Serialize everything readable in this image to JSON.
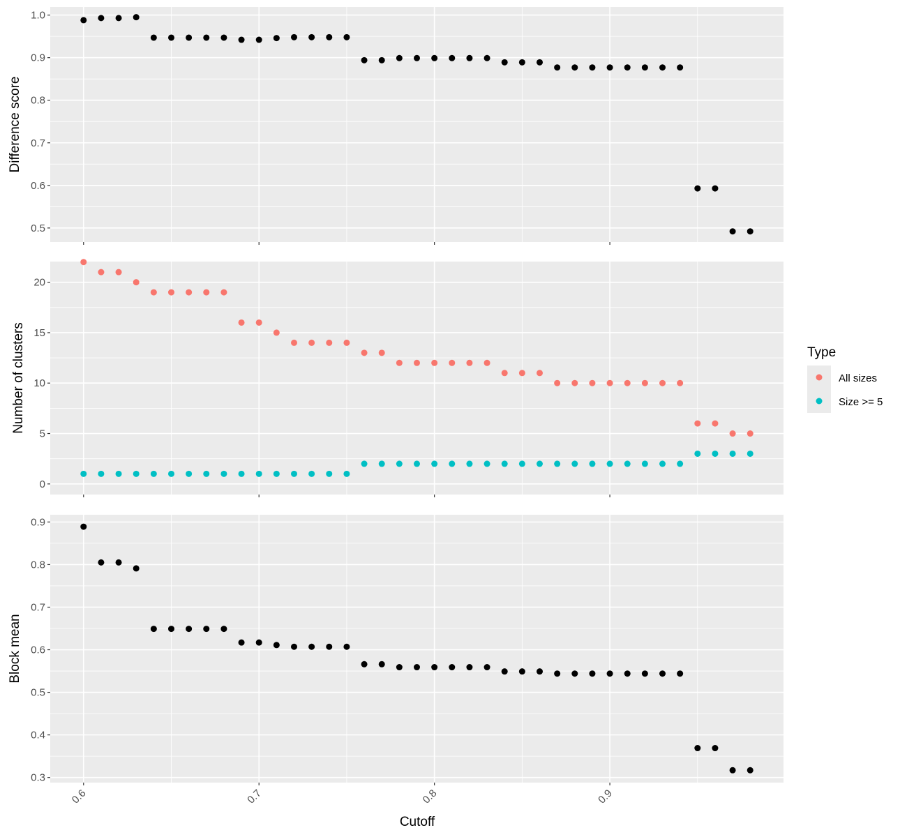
{
  "chart_data": {
    "type": "scatter",
    "x_axis": {
      "label": "Cutoff",
      "range": [
        0.581,
        0.999
      ],
      "ticks": [
        0.6,
        0.7,
        0.8,
        0.9
      ],
      "tick_labels": [
        "0.6",
        "0.7",
        "0.8",
        "0.9"
      ],
      "tick_label_rotation": "45deg"
    },
    "x": [
      0.6,
      0.61,
      0.62,
      0.63,
      0.64,
      0.65,
      0.66,
      0.67,
      0.68,
      0.69,
      0.7,
      0.71,
      0.72,
      0.73,
      0.74,
      0.75,
      0.76,
      0.77,
      0.78,
      0.79,
      0.8,
      0.81,
      0.82,
      0.83,
      0.84,
      0.85,
      0.86,
      0.87,
      0.88,
      0.89,
      0.9,
      0.91,
      0.92,
      0.93,
      0.94,
      0.95,
      0.96,
      0.97,
      0.98
    ],
    "grid": true,
    "panels": [
      {
        "ylabel": "Difference score",
        "ylim": [
          0.467,
          1.019
        ],
        "yticks": [
          0.5,
          0.6,
          0.7,
          0.8,
          0.9,
          1.0
        ],
        "ytick_labels": [
          "0.5",
          "0.6",
          "0.7",
          "0.8",
          "0.9",
          "1.0"
        ],
        "series": [
          {
            "color": "#000000",
            "values": [
              0.988,
              0.993,
              0.993,
              0.995,
              0.947,
              0.947,
              0.947,
              0.947,
              0.947,
              0.942,
              0.942,
              0.946,
              0.948,
              0.948,
              0.948,
              0.948,
              0.894,
              0.894,
              0.899,
              0.899,
              0.899,
              0.899,
              0.899,
              0.899,
              0.889,
              0.889,
              0.889,
              0.877,
              0.877,
              0.877,
              0.877,
              0.877,
              0.877,
              0.877,
              0.877,
              0.593,
              0.593,
              0.492,
              0.492
            ]
          }
        ]
      },
      {
        "ylabel": "Number of clusters",
        "ylim": [
          -1.05,
          22.05
        ],
        "yticks": [
          0,
          5,
          10,
          15,
          20
        ],
        "ytick_labels": [
          "0",
          "5",
          "10",
          "15",
          "20"
        ],
        "series": [
          {
            "name": "All sizes",
            "color": "#F8766D",
            "values": [
              22,
              21,
              21,
              20,
              19,
              19,
              19,
              19,
              19,
              16,
              16,
              15,
              14,
              14,
              14,
              14,
              13,
              13,
              12,
              12,
              12,
              12,
              12,
              12,
              11,
              11,
              11,
              10,
              10,
              10,
              10,
              10,
              10,
              10,
              10,
              6,
              6,
              5,
              5
            ]
          },
          {
            "name": "Size >= 5",
            "color": "#00BFC4",
            "values": [
              1,
              1,
              1,
              1,
              1,
              1,
              1,
              1,
              1,
              1,
              1,
              1,
              1,
              1,
              1,
              1,
              2,
              2,
              2,
              2,
              2,
              2,
              2,
              2,
              2,
              2,
              2,
              2,
              2,
              2,
              2,
              2,
              2,
              2,
              2,
              3,
              3,
              3,
              3
            ]
          }
        ]
      },
      {
        "ylabel": "Block mean",
        "ylim": [
          0.288,
          0.917
        ],
        "yticks": [
          0.3,
          0.4,
          0.5,
          0.6,
          0.7,
          0.8,
          0.9
        ],
        "ytick_labels": [
          "0.3",
          "0.4",
          "0.5",
          "0.6",
          "0.7",
          "0.8",
          "0.9"
        ],
        "series": [
          {
            "color": "#000000",
            "values": [
              0.889,
              0.805,
              0.805,
              0.791,
              0.649,
              0.649,
              0.649,
              0.649,
              0.649,
              0.617,
              0.617,
              0.611,
              0.607,
              0.607,
              0.607,
              0.607,
              0.566,
              0.566,
              0.559,
              0.559,
              0.559,
              0.559,
              0.559,
              0.559,
              0.549,
              0.549,
              0.549,
              0.544,
              0.544,
              0.544,
              0.544,
              0.544,
              0.544,
              0.544,
              0.544,
              0.369,
              0.369,
              0.317,
              0.317
            ]
          }
        ]
      }
    ],
    "legend": {
      "title": "Type",
      "placement": "right",
      "entries": [
        {
          "label": "All sizes",
          "color": "#F8766D"
        },
        {
          "label": "Size >= 5",
          "color": "#00BFC4"
        }
      ]
    }
  }
}
